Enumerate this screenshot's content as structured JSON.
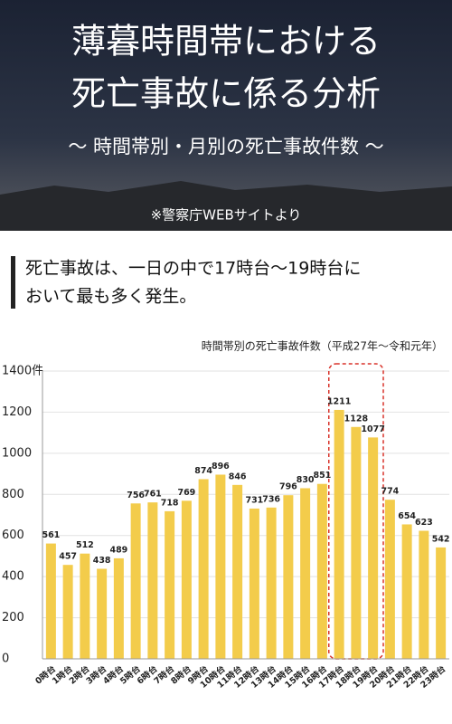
{
  "header": {
    "title": [
      "薄暮時間帯における",
      "死亡事故に係る分析"
    ],
    "subtitle": "〜 時間帯別・月別の死亡事故件数 〜",
    "source": "※警察庁WEBサイトより"
  },
  "headline": [
    "死亡事故は、一日の中で17時台〜19時台に",
    "おいて最も多く発生。"
  ],
  "chart_data": {
    "type": "bar",
    "title": "時間帯別の死亡事故件数（平成27年〜令和元年）",
    "categories": [
      "0時台",
      "1時台",
      "2時台",
      "3時台",
      "4時台",
      "5時台",
      "6時台",
      "7時台",
      "8時台",
      "9時台",
      "10時台",
      "11時台",
      "12時台",
      "13時台",
      "14時台",
      "15時台",
      "16時台",
      "17時台",
      "18時台",
      "19時台",
      "20時台",
      "21時台",
      "22時台",
      "23時台"
    ],
    "values": [
      561,
      457,
      512,
      438,
      489,
      756,
      761,
      718,
      769,
      874,
      896,
      846,
      731,
      736,
      796,
      830,
      851,
      1211,
      1128,
      1077,
      774,
      654,
      623,
      542
    ],
    "color": "#f3cc4b",
    "ylim": [
      0,
      1400
    ],
    "yticks": [
      0,
      200,
      400,
      600,
      800,
      1000,
      1200,
      {
        "value": 1400,
        "label": "1400件"
      }
    ],
    "grid": true
  }
}
